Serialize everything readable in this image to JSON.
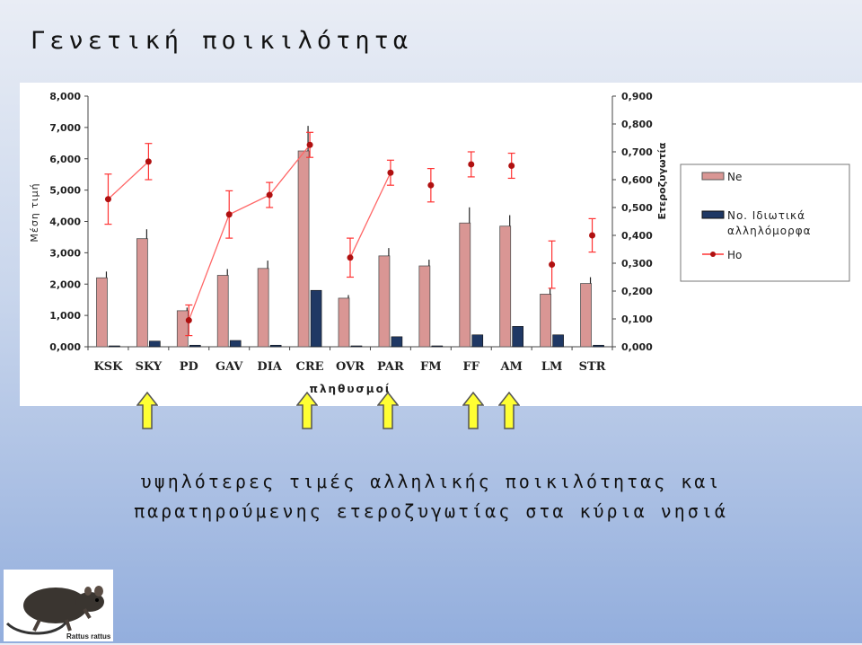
{
  "slide": {
    "title": "Γενετική ποικιλότητα",
    "caption_line1": "υψηλότερες τιμές αλληλικής ποικιλότητας και",
    "caption_line2": "παρατηρούμενης ετεροζυγωτίας στα κύρια νησιά",
    "arrow_color": "#ffff33",
    "image_label": "Rattus rattus"
  },
  "chart_data": {
    "type": "bar",
    "categories": [
      "KSK",
      "SKY",
      "PD",
      "GAV",
      "DIA",
      "CRE",
      "OVR",
      "PAR",
      "FM",
      "FF",
      "AM",
      "LM",
      "STR"
    ],
    "xlabel": "πληθυσμοί",
    "ylabel": "Μέση τιμή",
    "ylabel2": "Ετεροζυγωτία",
    "ylim": [
      0,
      8
    ],
    "y2lim": [
      0,
      0.9
    ],
    "yticks": [
      "0,000",
      "1,000",
      "2,000",
      "3,000",
      "4,000",
      "5,000",
      "6,000",
      "7,000",
      "8,000"
    ],
    "y2ticks": [
      "0,000",
      "0,100",
      "0,200",
      "0,300",
      "0,400",
      "0,500",
      "0,600",
      "0,700",
      "0,800",
      "0,900"
    ],
    "legend_position": "right",
    "series": [
      {
        "name": "Ne",
        "kind": "bar",
        "axis": "left",
        "color": "#d99694",
        "values": [
          2.2,
          3.45,
          1.15,
          2.28,
          2.5,
          6.25,
          1.55,
          2.9,
          2.58,
          3.95,
          3.85,
          1.68,
          2.02
        ],
        "error": [
          0.2,
          0.3,
          0.1,
          0.2,
          0.25,
          0.8,
          0.1,
          0.25,
          0.2,
          0.5,
          0.35,
          0.2,
          0.2
        ]
      },
      {
        "name": "No. Ιδιωτικά αλληλόμορφα",
        "kind": "bar",
        "axis": "left",
        "color": "#1f3864",
        "values": [
          0,
          0.18,
          0.05,
          0.2,
          0.05,
          1.8,
          0,
          0.32,
          0,
          0.38,
          0.65,
          0.38,
          0.05
        ]
      },
      {
        "name": "Ho",
        "kind": "line",
        "axis": "right",
        "color": "#ff3333",
        "values": [
          0.53,
          0.665,
          0.095,
          0.475,
          0.545,
          0.725,
          0.32,
          0.625,
          0.58,
          0.655,
          0.65,
          0.295,
          0.4
        ],
        "error": [
          0.09,
          0.065,
          0.055,
          0.085,
          0.045,
          0.045,
          0.07,
          0.045,
          0.06,
          0.045,
          0.045,
          0.085,
          0.06
        ],
        "connected_groups": [
          [
            0,
            1
          ],
          [
            2,
            3,
            4,
            5
          ],
          [
            6,
            7
          ]
        ]
      }
    ]
  }
}
